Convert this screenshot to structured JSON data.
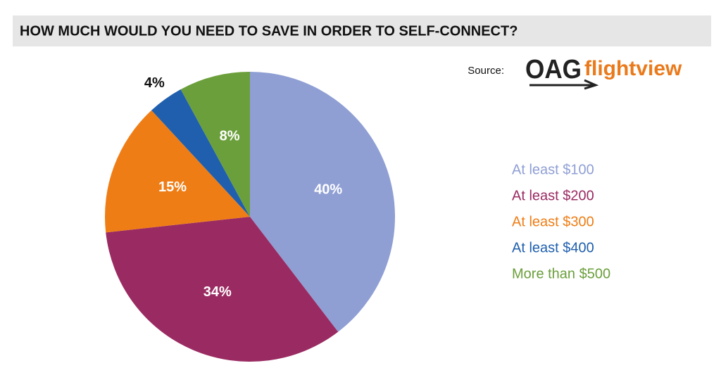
{
  "chart_data": {
    "type": "pie",
    "title": "HOW MUCH WOULD YOU NEED TO SAVE IN ORDER TO SELF-CONNECT?",
    "source_label": "Source:",
    "source_logo": "OAG",
    "source_logo_sub": "flightview",
    "categories": [
      "At least $100",
      "At least $200",
      "At least $300",
      "At least $400",
      "More than $500"
    ],
    "values": [
      40,
      34,
      15,
      4,
      8
    ],
    "value_labels": [
      "40%",
      "34%",
      "15%",
      "4%",
      "8%"
    ],
    "colors": [
      "#8f9fd4",
      "#9a2b62",
      "#ef7d15",
      "#1f5fae",
      "#6b9f3b"
    ],
    "legend": "right"
  }
}
